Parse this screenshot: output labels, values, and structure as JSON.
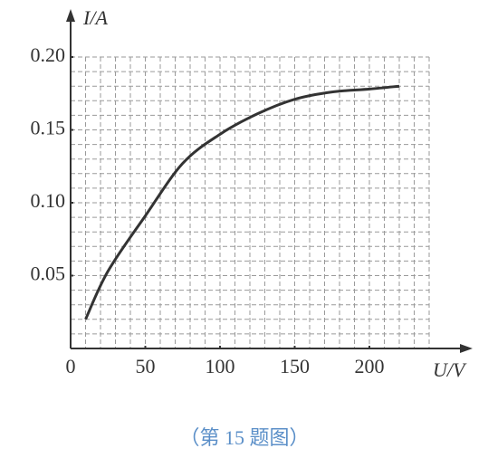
{
  "chart_data": {
    "type": "line",
    "x_label": "U/V",
    "y_label": "I/A",
    "caption": "（第 15 题图）",
    "x": [
      10,
      25,
      50,
      75,
      100,
      125,
      150,
      175,
      200,
      220
    ],
    "series": [
      {
        "color": "#333333",
        "values": [
          0.02,
          0.053,
          0.091,
          0.127,
          0.147,
          0.161,
          0.171,
          0.176,
          0.178,
          0.18
        ]
      }
    ],
    "xlim": [
      0,
      240
    ],
    "xticks": [
      0,
      50,
      100,
      150,
      200
    ],
    "ylim": [
      0,
      0.2
    ],
    "yticks": [
      {
        "value": 0.05,
        "label": "0.05"
      },
      {
        "value": 0.1,
        "label": "0.10"
      },
      {
        "value": 0.15,
        "label": "0.15"
      },
      {
        "value": 0.2,
        "label": "0.20"
      }
    ],
    "grid": true
  }
}
